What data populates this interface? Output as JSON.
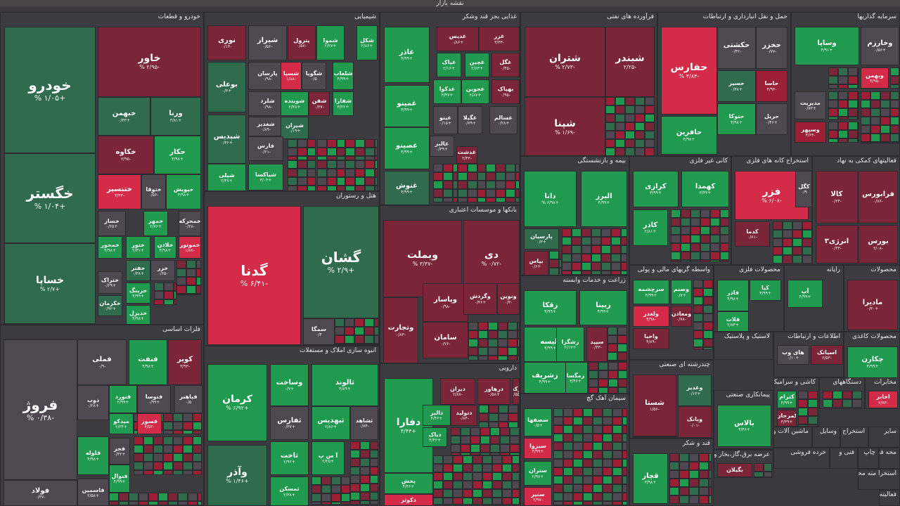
{
  "page": {
    "title": "نقشه بازار"
  },
  "colors": {
    "gd": "#2f6b4c",
    "gm": "#1f9a4e",
    "gb": "#13b75a",
    "rd": "#7a2538",
    "rm": "#9c1f35",
    "rb": "#d42b48",
    "n": "#4e4850"
  },
  "sectors": [
    {
      "id": "khodro",
      "title": "خودرو و قطعات",
      "tiles": [
        {
          "sym": "خودرو",
          "chg": "% ۱/۰۵+",
          "c": "gd"
        },
        {
          "sym": "خگستر",
          "chg": "% ۱/۰۴+",
          "c": "gd"
        },
        {
          "sym": "خساپا",
          "chg": "% ۲/۷+",
          "c": "gd"
        },
        {
          "sym": "خاور",
          "chg": "% ۲/۹۵-",
          "c": "rd"
        },
        {
          "sym": "خبهمن",
          "chg": "۰/۳۳+",
          "c": "gd"
        },
        {
          "sym": "ورنا",
          "chg": "۳/۸۱+",
          "c": "gd"
        },
        {
          "sym": "خکاوه",
          "chg": "۲/۹۵-",
          "c": "rd"
        },
        {
          "sym": "حکار",
          "chg": "۴/۹۸+",
          "c": "gm"
        },
        {
          "sym": "ختنسیر",
          "chg": "۳/۴۳-",
          "c": "rb"
        },
        {
          "sym": "ختوقا",
          "chg": "۰/۵۶-",
          "c": "n"
        },
        {
          "sym": "خپویش",
          "chg": "۳/۹۸+",
          "c": "gm"
        },
        {
          "sym": "خساز",
          "chg": "۰/۲۵+",
          "c": "n"
        },
        {
          "sym": "خمهر",
          "chg": "۲/۷۶+",
          "c": "gm"
        },
        {
          "sym": "خمحرکه",
          "chg": "۰/۲۸-",
          "c": "n"
        },
        {
          "sym": "خمحور",
          "chg": "۴/۹۸+",
          "c": "gm"
        },
        {
          "sym": "ختور",
          "chg": "۲/۳۱+",
          "c": "gm"
        },
        {
          "sym": "خلادن",
          "chg": "۴/۹۸+",
          "c": "gm"
        },
        {
          "sym": "خموتور",
          "chg": "۱/۸۷-",
          "c": "rb"
        },
        {
          "sym": "خفنر",
          "chg": "۰/۳۸+",
          "c": "gd"
        },
        {
          "sym": "ختراک",
          "chg": "۰/۲۹+",
          "c": "n"
        },
        {
          "sym": "خزر",
          "chg": "۰/۶۵-",
          "c": "n"
        },
        {
          "sym": "خرینگ",
          "chg": "۴/۹۹+",
          "c": "gm"
        },
        {
          "sym": "خکرمان",
          "chg": "۰/۹۲+",
          "c": "gd"
        },
        {
          "sym": "خدیزل",
          "chg": "۴/۹۸+",
          "c": "gm"
        }
      ]
    },
    {
      "id": "shimiaei",
      "title": "شیمیایی",
      "tiles": [
        {
          "sym": "نوری",
          "chg": "۰/۱۴-",
          "c": "rd"
        },
        {
          "sym": "شیراز",
          "chg": "۰/۵۶-",
          "c": "n"
        },
        {
          "sym": "پترول",
          "chg": "۰/۵۷-",
          "c": "rd"
        },
        {
          "sym": "شموا",
          "chg": "۲/۲۷+",
          "c": "gm"
        },
        {
          "sym": "شکل",
          "chg": "۲/۸۶+",
          "c": "gm"
        },
        {
          "sym": "بوعلی",
          "chg": "۰/۳+",
          "c": "gd"
        },
        {
          "sym": "پارسان",
          "chg": "۰/۹۸-",
          "c": "n"
        },
        {
          "sym": "شسپا",
          "chg": "۱/۸۸-",
          "c": "rb"
        },
        {
          "sym": "شگویا",
          "chg": "۰/۵",
          "c": "n"
        },
        {
          "sym": "شلعاب",
          "chg": "۴/۹۹+",
          "c": "gm"
        },
        {
          "sym": "شلرد",
          "chg": "۰/۹۸-",
          "c": "n"
        },
        {
          "sym": "شوینده",
          "chg": "۲/۳۸+",
          "c": "gm"
        },
        {
          "sym": "شفن",
          "chg": "۰/۳۷-",
          "c": "rd"
        },
        {
          "sym": "شفارا",
          "chg": "۳/۲۲+",
          "c": "gm"
        },
        {
          "sym": "شپدیس",
          "chg": "۰/۴۲+",
          "c": "gd"
        },
        {
          "sym": "شغدیر",
          "chg": "۰/۸۹-",
          "c": "n"
        },
        {
          "sym": "شیران",
          "chg": "۰/۱۹+",
          "c": "gd"
        },
        {
          "sym": "فارس",
          "chg": "۰/۲۱-",
          "c": "n"
        },
        {
          "sym": "شپلی",
          "chg": "۲/۴۷+",
          "c": "gm"
        },
        {
          "sym": "شیاکسا",
          "chg": "۳/۰۴+",
          "c": "gm"
        }
      ]
    },
    {
      "id": "ghaza",
      "title": "غذایی بجز قند وشکر",
      "tiles": [
        {
          "sym": "غاذر",
          "chg": "۴/۹۹+",
          "c": "gm"
        },
        {
          "sym": "غدیس",
          "chg": "۰/۸۶+",
          "c": "rd"
        },
        {
          "sym": "غزر",
          "chg": "۳/۳۳-",
          "c": "rd"
        },
        {
          "sym": "غپاک",
          "chg": "۲/۱۶+",
          "c": "gm"
        },
        {
          "sym": "غچین",
          "chg": "۲/۶۳+",
          "c": "gm"
        },
        {
          "sym": "غگل",
          "chg": "۰/۴۵-",
          "c": "rd"
        },
        {
          "sym": "غمینو",
          "chg": "۴/۹۹+",
          "c": "gm"
        },
        {
          "sym": "غدکوا",
          "chg": "۳/۴۷+",
          "c": "gm"
        },
        {
          "sym": "غجوین",
          "chg": "۲/۸۷+",
          "c": "gm"
        },
        {
          "sym": "بهپاک",
          "chg": "۰/۹۵-",
          "c": "rd"
        },
        {
          "sym": "غصینو",
          "chg": "۴/۹۹+",
          "c": "gm"
        },
        {
          "sym": "غینو",
          "chg": "۰/۱۵+",
          "c": "n"
        },
        {
          "sym": "غگیلا",
          "chg": "۰/۷۹+",
          "c": "n"
        },
        {
          "sym": "غسالم",
          "chg": "۰/۲۸+",
          "c": "n"
        },
        {
          "sym": "غالبر",
          "chg": "۰/۳۹+",
          "c": "n"
        },
        {
          "sym": "غدشت",
          "chg": "۲/۴۳-",
          "c": "rd"
        },
        {
          "sym": "غنوش",
          "chg": "۴/۹۹+",
          "c": "gd"
        }
      ]
    },
    {
      "id": "farvarde",
      "title": "فرآورده های نفتی",
      "tiles": [
        {
          "sym": "شتران",
          "chg": "% ۲/۷۳-",
          "c": "rd"
        },
        {
          "sym": "شبندر",
          "chg": "۲/۲۵-",
          "c": "rd"
        },
        {
          "sym": "شپنا",
          "chg": "% ۱/۶۹-",
          "c": "rd"
        }
      ]
    },
    {
      "id": "haml",
      "title": "حمل و نقل انبارداری و ارتباطات",
      "tiles": [
        {
          "sym": "حفارس",
          "chg": "% ۴/۸۴-",
          "c": "rb"
        },
        {
          "sym": "حکشتی",
          "chg": "۰/۴۲-",
          "c": "n"
        },
        {
          "sym": "حخزر",
          "chg": "۰/۷۷-",
          "c": "n"
        },
        {
          "sym": "حسیر",
          "chg": "۰/۳۸+",
          "c": "gd"
        },
        {
          "sym": "حاسا",
          "chg": "۴/۹۳-",
          "c": "rm"
        },
        {
          "sym": "حافرین",
          "chg": "۴/۹۸+",
          "c": "gm"
        },
        {
          "sym": "حتوکا",
          "chg": "۴/۹۸+",
          "c": "gm"
        },
        {
          "sym": "حریل",
          "chg": "۰/۴۶+",
          "c": "n"
        }
      ]
    },
    {
      "id": "sarmaye",
      "title": "سرمایه گذاریها",
      "tiles": [
        {
          "sym": "وساپا",
          "chg": "۴/۹۱+",
          "c": "gm"
        },
        {
          "sym": "وخارزم",
          "chg": "۰/۵۶+",
          "c": "n"
        },
        {
          "sym": "وبهمن",
          "chg": "۴/۹۵-",
          "c": "rb"
        },
        {
          "sym": "مدیریت",
          "chg": "۰/۷۳+",
          "c": "n"
        },
        {
          "sym": "وسپهر",
          "chg": "۳/۶۴-",
          "c": "rm"
        }
      ]
    },
    {
      "id": "hotel",
      "title": "هتل و رستوران",
      "tiles": [
        {
          "sym": "گدنا",
          "chg": "% ۶/۴۱-",
          "c": "rb"
        },
        {
          "sym": "گشان",
          "chg": "% ۲/۹+",
          "c": "gd"
        },
        {
          "sym": "سمگا",
          "chg": "۰/۴",
          "c": "n"
        }
      ]
    },
    {
      "id": "banks",
      "title": "بانکها و موسسات اعتباری",
      "tiles": [
        {
          "sym": "وبملت",
          "chg": "% ۳/۳۷-",
          "c": "rd"
        },
        {
          "sym": "دی",
          "chg": "% ۰/۷۲-",
          "c": "rd"
        },
        {
          "sym": "وتجارت",
          "chg": "۰/۸۳-",
          "c": "rd"
        },
        {
          "sym": "وپاسار",
          "chg": "۰/۹۸-",
          "c": "rd"
        },
        {
          "sym": "وگردش",
          "chg": "۰/۴۶+",
          "c": "rd"
        },
        {
          "sym": "ونوین",
          "chg": "۰/۳-",
          "c": "rd"
        },
        {
          "sym": "سامان",
          "chg": "۰/۷۶-",
          "c": "rd"
        }
      ]
    },
    {
      "id": "bimeh",
      "title": "بیمه و بازنشستگی",
      "tiles": [
        {
          "sym": "دانا",
          "chg": "% ۶/۹۸+",
          "c": "gm"
        },
        {
          "sym": "البرز",
          "chg": "۴/۹۹+",
          "c": "gm"
        },
        {
          "sym": "پارسیان",
          "chg": "۰/۳+",
          "c": "gd"
        },
        {
          "sym": "بپاس",
          "chg": "۰/۶+",
          "c": "rd"
        }
      ]
    },
    {
      "id": "kani",
      "title": "کانی غیر فلزی",
      "tiles": [
        {
          "sym": "کرازی",
          "chg": "۳/۹۹+",
          "c": "gm"
        },
        {
          "sym": "کهمدا",
          "chg": "۳/۳۳+",
          "c": "gm"
        },
        {
          "sym": "کاذر",
          "chg": "۲/۸۱+",
          "c": "gm"
        }
      ]
    },
    {
      "id": "estekhraj",
      "title": "استخراج کانه های فلزی",
      "tiles": [
        {
          "sym": "فزر",
          "chg": "% ۶/۰۸-",
          "c": "rb"
        },
        {
          "sym": "کدما",
          "chg": "۰/۸۱-",
          "c": "rd"
        },
        {
          "sym": "کگل",
          "chg": "۰/۹",
          "c": "n"
        }
      ]
    },
    {
      "id": "faaliat",
      "title": "فعالیتهای کمکی به نهاد",
      "tiles": [
        {
          "sym": "کالا",
          "chg": "۰/۲۴-",
          "c": "rd"
        },
        {
          "sym": "فرابورس",
          "chg": "۰/۸۶-",
          "c": "rd"
        },
        {
          "sym": "انرژی۳",
          "chg": "۰/۳۳-",
          "c": "rd"
        },
        {
          "sym": "بورس",
          "chg": "۲/۰۸-",
          "c": "rd"
        }
      ]
    },
    {
      "id": "felezat",
      "title": "فلزات اساسی",
      "tiles": [
        {
          "sym": "فروژ",
          "chg": "% ۰/۳۸-",
          "c": "n"
        },
        {
          "sym": "فملی",
          "chg": "۰/۹-",
          "c": "n"
        },
        {
          "sym": "فنفت",
          "chg": "۴/۹۸+",
          "c": "gm"
        },
        {
          "sym": "کویر",
          "chg": "۳/۹۳-",
          "c": "rd"
        },
        {
          "sym": "ذوب",
          "chg": "۰/۲۸+",
          "c": "n"
        },
        {
          "sym": "فنورد",
          "chg": "۲/۹۹+",
          "c": "gm"
        },
        {
          "sym": "فتوسا",
          "chg": "۰/۹۹+",
          "c": "n"
        },
        {
          "sym": "فباهنر",
          "chg": "۰/۵",
          "c": "n"
        },
        {
          "sym": "میدکو",
          "chg": "۲/۲۴+",
          "c": "gm"
        },
        {
          "sym": "فسوز",
          "chg": "۴/۵۲-",
          "c": "rb"
        },
        {
          "sym": "فلوله",
          "chg": "۴/۹۸+",
          "c": "gm"
        },
        {
          "sym": "فجر",
          "chg": "۰/۴۲+",
          "c": "n"
        },
        {
          "sym": "فنوال",
          "chg": "۴/۹۹+",
          "c": "gm"
        },
        {
          "sym": "فولاد",
          "chg": "۰/۳۷-",
          "c": "n"
        },
        {
          "sym": "فاسمین",
          "chg": "۲/۵۸+",
          "c": "n"
        }
      ]
    },
    {
      "id": "amlak",
      "title": "انبوه سازی املاک و مستغلات",
      "tiles": [
        {
          "sym": "کرمان",
          "chg": "% ۶/۹۲+",
          "c": "gm"
        },
        {
          "sym": "وساخت",
          "chg": "۰/۷+",
          "c": "gm"
        },
        {
          "sym": "ثالوند",
          "chg": "۳/۸۹+",
          "c": "gm"
        },
        {
          "sym": "ثفارس",
          "chg": "۰/۳۷+",
          "c": "n"
        },
        {
          "sym": "ثبهدیس",
          "chg": "۲/۸۶+",
          "c": "gm"
        },
        {
          "sym": "ثشاهد",
          "chg": "۰/۷۴-",
          "c": "n"
        },
        {
          "sym": "آ س پ",
          "chg": "۲/۲۵+",
          "c": "gm"
        },
        {
          "sym": "ثاخت",
          "chg": "۲/۹۲+",
          "c": "gm"
        },
        {
          "sym": "وآذر",
          "chg": "% ۱/۴۶+",
          "c": "gd"
        },
        {
          "sym": "ثمسکن",
          "chg": "۲/۳۸+",
          "c": "gm"
        }
      ]
    },
    {
      "id": "darou",
      "title": "دارویی",
      "tiles": [
        {
          "sym": "دفارا",
          "chg": "۴/۴۴+",
          "c": "gm"
        },
        {
          "sym": "دیران",
          "chg": "۲/۸۷-",
          "c": "rd"
        },
        {
          "sym": "درهاور",
          "chg": "۰/۵۸+",
          "c": "rd"
        },
        {
          "sym": "برکت",
          "chg": "۲/۵۵-",
          "c": "rd"
        },
        {
          "sym": "دالبر",
          "chg": "۴/۴۶+",
          "c": "gm"
        },
        {
          "sym": "دتولید",
          "chg": "۰/۸۴-",
          "c": "rd"
        },
        {
          "sym": "دیاک",
          "chg": "۴/۴۶+",
          "c": "gm"
        },
        {
          "sym": "پخش",
          "chg": "۴/۴۶+",
          "c": "gm"
        },
        {
          "sym": "دکوثر",
          "chg": "۰/۹۷-",
          "c": "rb"
        }
      ]
    },
    {
      "id": "zeraat",
      "title": "زراعت و خدمات وابسته",
      "tiles": [
        {
          "sym": "زقکا",
          "chg": "۴/۹۹+",
          "c": "gm"
        },
        {
          "sym": "زبینا",
          "chg": "۴/۹۹+",
          "c": "gm"
        },
        {
          "sym": "ثلیسه",
          "chg": "۴/۹۹+",
          "c": "gm"
        },
        {
          "sym": "زشگزا",
          "chg": "۲/۱۷+",
          "c": "gm"
        },
        {
          "sym": "سپید",
          "chg": "۰/۳۳-",
          "c": "rd"
        },
        {
          "sym": "زمگسا",
          "chg": "۳/۴۶+",
          "c": "gm"
        },
        {
          "sym": "زشریف",
          "chg": "۴/۹۹+",
          "c": "gm"
        }
      ]
    },
    {
      "id": "siman",
      "title": "سیمان آهک گچ",
      "tiles": [
        {
          "sym": "سصفها",
          "chg": "۰/۵+",
          "c": "gm"
        },
        {
          "sym": "سیزوا",
          "chg": "۴/۹۹+",
          "c": "rb"
        },
        {
          "sym": "ستران",
          "chg": "۲/۹۷+",
          "c": "gm"
        },
        {
          "sym": "سنیر",
          "chg": "۲/۹۷-",
          "c": "rb"
        }
      ]
    },
    {
      "id": "vasete",
      "title": "واسطه گریهای مالی و پولی",
      "tiles": [
        {
          "sym": "سرچشمه",
          "chg": "۴/۹۹+",
          "c": "gm"
        },
        {
          "sym": "وصنم",
          "chg": "۰/۷+",
          "c": "gm"
        },
        {
          "sym": "ولغدر",
          "chg": "۴/۹۸-",
          "c": "rb"
        },
        {
          "sym": "ومعادن",
          "chg": "۰/۷۸-",
          "c": "rd"
        },
        {
          "sym": "واحیا",
          "chg": "۴/۸۹-",
          "c": "rd"
        }
      ]
    },
    {
      "id": "mahsoulat-felezi",
      "title": "محصولات فلزی",
      "tiles": [
        {
          "sym": "کیا",
          "chg": "۴/۹۹+",
          "c": "gm"
        },
        {
          "sym": "فاذر",
          "chg": "۴/۹۸+",
          "c": "gm"
        },
        {
          "sym": "فلات",
          "chg": "۲/۸۴+",
          "c": "gm"
        }
      ]
    },
    {
      "id": "rayane",
      "title": "رایانه",
      "tiles": [
        {
          "sym": "آپ",
          "chg": "۴/۹۹+",
          "c": "gm"
        }
      ]
    },
    {
      "id": "mahsoulat",
      "title": "محصولات",
      "tiles": [
        {
          "sym": "مادیرا",
          "chg": "۰/۳۰+",
          "c": "rd"
        }
      ]
    },
    {
      "id": "chandreshte",
      "title": "چندرشته ای صنعتی",
      "tiles": [
        {
          "sym": "شستا",
          "chg": "۱/۵۶-",
          "c": "rd"
        },
        {
          "sym": "وغدیر",
          "chg": "۰/۱۳+",
          "c": "gd"
        },
        {
          "sym": "وبانک",
          "chg": "۰/۰۱-",
          "c": "rd"
        }
      ]
    },
    {
      "id": "lastik",
      "title": "لاستیک و پلاستیک",
      "tiles": []
    },
    {
      "id": "ettelaat",
      "title": "اطلاعات و ارتباطات",
      "tiles": [
        {
          "sym": "اسیاتک",
          "chg": "۲/۵۳-",
          "c": "rd"
        },
        {
          "sym": "های وب",
          "chg": "۰/۱۰+",
          "c": "n"
        }
      ]
    },
    {
      "id": "kaghazi",
      "title": "محصولات کاغذی",
      "tiles": [
        {
          "sym": "چکارن",
          "chg": "۴/۹۹+",
          "c": "gm"
        }
      ]
    },
    {
      "id": "gand",
      "title": "قند و شکر",
      "tiles": [
        {
          "sym": "قچار",
          "chg": "۳/۹۸+",
          "c": "gm"
        }
      ]
    },
    {
      "id": "peymankari",
      "title": "پیمانکاری صنعتی",
      "tiles": [
        {
          "sym": "بالاس",
          "chg": "۳/۴۶+",
          "c": "gm"
        }
      ]
    },
    {
      "id": "kashi",
      "title": "کاشی و سرامیک",
      "tiles": [
        {
          "sym": "کترام",
          "chg": "۴/۹۹+",
          "c": "gm"
        },
        {
          "sym": "کمرجان",
          "chg": "۳/۳۹+",
          "c": "rd"
        }
      ]
    },
    {
      "id": "dastgah",
      "title": "دستگاههای",
      "tiles": []
    },
    {
      "id": "mokhaberat",
      "title": "مخابرات",
      "tiles": [
        {
          "sym": "اخابر",
          "chg": "۲/۷۳-",
          "c": "rb"
        }
      ]
    },
    {
      "id": "barq",
      "title": "عرضه برق،گاز،بخار و",
      "tiles": [
        {
          "sym": "بگیلان",
          "chg": "۲/۸۸+",
          "c": "rd"
        }
      ]
    },
    {
      "id": "mashin",
      "title": "ماشین آلات و",
      "tiles": []
    },
    {
      "id": "vasayel",
      "title": "وسایل",
      "tiles": []
    },
    {
      "id": "estekhraj2",
      "title": "استخراج",
      "tiles": []
    },
    {
      "id": "sayer",
      "title": "سایر",
      "tiles": []
    },
    {
      "id": "khorde",
      "title": "خرده فروشی",
      "tiles": []
    },
    {
      "id": "fani",
      "title": "فنی و",
      "tiles": []
    },
    {
      "id": "chap",
      "title": "چاپ",
      "tiles": []
    },
    {
      "id": "mahal",
      "title": "محه فعالیه",
      "tiles": []
    },
    {
      "id": "estekhraj3",
      "title": "استخرا منه محصوا",
      "tiles": []
    },
    {
      "id": "faaliat2",
      "title": "فعالیته",
      "tiles": []
    }
  ]
}
